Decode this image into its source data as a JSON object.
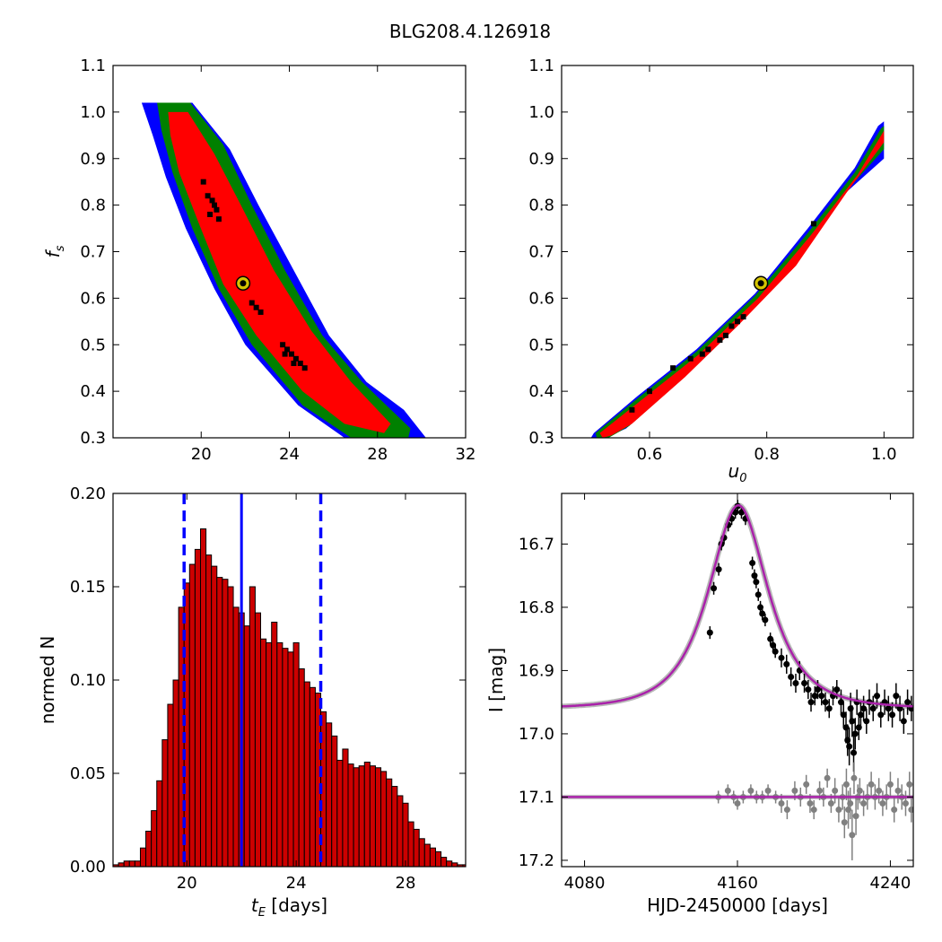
{
  "figure": {
    "title": "BLG208.4.126918"
  },
  "chart_data": [
    {
      "type": "heatmap",
      "panel": "top-left",
      "xlabel": "",
      "ylabel": "f_s",
      "xlim": [
        16,
        32
      ],
      "ylim": [
        0.3,
        1.1
      ],
      "xticks": [
        20,
        24,
        28,
        32
      ],
      "yticks": [
        0.3,
        0.4,
        0.5,
        0.6,
        0.7,
        0.8,
        0.9,
        1.0,
        1.1
      ],
      "regions": [
        {
          "name": "blue",
          "color": "#0000ff",
          "polygon": [
            [
              17.3,
              1.02
            ],
            [
              19.6,
              1.02
            ],
            [
              21.3,
              0.92
            ],
            [
              22.6,
              0.8
            ],
            [
              24.2,
              0.66
            ],
            [
              25.8,
              0.52
            ],
            [
              27.5,
              0.42
            ],
            [
              29.2,
              0.36
            ],
            [
              30.2,
              0.3
            ],
            [
              26.5,
              0.3
            ],
            [
              24.4,
              0.37
            ],
            [
              22.0,
              0.5
            ],
            [
              20.6,
              0.62
            ],
            [
              19.3,
              0.75
            ],
            [
              18.4,
              0.86
            ],
            [
              17.8,
              0.95
            ]
          ]
        },
        {
          "name": "green",
          "color": "#008000",
          "polygon": [
            [
              18.0,
              1.02
            ],
            [
              19.5,
              1.02
            ],
            [
              21.0,
              0.93
            ],
            [
              22.3,
              0.8
            ],
            [
              23.8,
              0.66
            ],
            [
              25.5,
              0.52
            ],
            [
              27.3,
              0.42
            ],
            [
              29.5,
              0.32
            ],
            [
              29.4,
              0.3
            ],
            [
              26.8,
              0.3
            ],
            [
              24.6,
              0.37
            ],
            [
              22.3,
              0.5
            ],
            [
              20.8,
              0.62
            ],
            [
              19.6,
              0.75
            ],
            [
              18.7,
              0.87
            ],
            [
              18.2,
              0.96
            ]
          ]
        },
        {
          "name": "red",
          "color": "#ff0000",
          "polygon": [
            [
              18.5,
              1.0
            ],
            [
              19.4,
              1.0
            ],
            [
              20.6,
              0.91
            ],
            [
              21.8,
              0.8
            ],
            [
              23.3,
              0.66
            ],
            [
              25.0,
              0.53
            ],
            [
              26.8,
              0.42
            ],
            [
              28.6,
              0.33
            ],
            [
              28.3,
              0.31
            ],
            [
              26.5,
              0.33
            ],
            [
              24.6,
              0.4
            ],
            [
              22.5,
              0.52
            ],
            [
              21.0,
              0.63
            ],
            [
              19.9,
              0.76
            ],
            [
              19.0,
              0.87
            ],
            [
              18.6,
              0.95
            ]
          ]
        }
      ],
      "samples": [
        [
          20.3,
          0.82
        ],
        [
          20.5,
          0.81
        ],
        [
          20.6,
          0.8
        ],
        [
          20.7,
          0.79
        ],
        [
          20.4,
          0.78
        ],
        [
          20.1,
          0.85
        ],
        [
          20.8,
          0.77
        ],
        [
          22.3,
          0.59
        ],
        [
          22.5,
          0.58
        ],
        [
          22.7,
          0.57
        ],
        [
          23.7,
          0.5
        ],
        [
          23.9,
          0.49
        ],
        [
          24.1,
          0.48
        ],
        [
          24.3,
          0.47
        ],
        [
          24.5,
          0.46
        ],
        [
          24.7,
          0.45
        ],
        [
          23.8,
          0.48
        ],
        [
          24.2,
          0.46
        ]
      ],
      "best_fit": [
        21.9,
        0.632
      ]
    },
    {
      "type": "heatmap",
      "panel": "top-right",
      "xlabel": "u_0",
      "ylabel": "",
      "xlim": [
        0.45,
        1.05
      ],
      "ylim": [
        0.3,
        1.1
      ],
      "xticks": [
        0.6,
        0.8,
        1.0
      ],
      "yticks": [
        0.3,
        0.4,
        0.5,
        0.6,
        0.7,
        0.8,
        0.9,
        1.0,
        1.1
      ],
      "regions": [
        {
          "name": "blue",
          "color": "#0000ff",
          "polygon": [
            [
              0.505,
              0.31
            ],
            [
              0.58,
              0.39
            ],
            [
              0.68,
              0.49
            ],
            [
              0.78,
              0.61
            ],
            [
              0.87,
              0.75
            ],
            [
              0.95,
              0.88
            ],
            [
              0.99,
              0.97
            ],
            [
              1.0,
              0.98
            ],
            [
              1.0,
              0.9
            ],
            [
              0.92,
              0.81
            ],
            [
              0.84,
              0.66
            ],
            [
              0.74,
              0.53
            ],
            [
              0.65,
              0.42
            ],
            [
              0.56,
              0.32
            ],
            [
              0.525,
              0.3
            ],
            [
              0.5,
              0.3
            ]
          ]
        },
        {
          "name": "green",
          "color": "#008000",
          "polygon": [
            [
              0.508,
              0.31
            ],
            [
              0.58,
              0.385
            ],
            [
              0.68,
              0.485
            ],
            [
              0.78,
              0.605
            ],
            [
              0.87,
              0.74
            ],
            [
              0.95,
              0.87
            ],
            [
              0.995,
              0.965
            ],
            [
              1.0,
              0.97
            ],
            [
              1.0,
              0.92
            ],
            [
              0.925,
              0.815
            ],
            [
              0.845,
              0.665
            ],
            [
              0.745,
              0.535
            ],
            [
              0.655,
              0.425
            ],
            [
              0.565,
              0.325
            ],
            [
              0.53,
              0.3
            ],
            [
              0.51,
              0.3
            ]
          ]
        },
        {
          "name": "red",
          "color": "#ff0000",
          "polygon": [
            [
              0.515,
              0.31
            ],
            [
              0.585,
              0.38
            ],
            [
              0.685,
              0.48
            ],
            [
              0.785,
              0.6
            ],
            [
              0.875,
              0.735
            ],
            [
              0.955,
              0.865
            ],
            [
              1.0,
              0.96
            ],
            [
              1.0,
              0.935
            ],
            [
              0.935,
              0.825
            ],
            [
              0.85,
              0.67
            ],
            [
              0.75,
              0.54
            ],
            [
              0.66,
              0.43
            ],
            [
              0.57,
              0.33
            ],
            [
              0.535,
              0.305
            ],
            [
              0.52,
              0.3
            ]
          ]
        }
      ],
      "samples": [
        [
          0.57,
          0.36
        ],
        [
          0.6,
          0.4
        ],
        [
          0.64,
          0.45
        ],
        [
          0.67,
          0.47
        ],
        [
          0.69,
          0.48
        ],
        [
          0.7,
          0.49
        ],
        [
          0.72,
          0.51
        ],
        [
          0.73,
          0.52
        ],
        [
          0.74,
          0.54
        ],
        [
          0.75,
          0.55
        ],
        [
          0.76,
          0.56
        ],
        [
          0.88,
          0.76
        ]
      ],
      "best_fit": [
        0.79,
        0.632
      ]
    },
    {
      "type": "bar",
      "panel": "bottom-left",
      "xlabel": "t_E [days]",
      "ylabel": "normed N",
      "xlim": [
        17.3,
        30.2
      ],
      "ylim": [
        0,
        0.2
      ],
      "xticks": [
        20,
        24,
        28
      ],
      "yticks": [
        0.0,
        0.05,
        0.1,
        0.15,
        0.2
      ],
      "bin_start": 17.3,
      "bin_width": 0.2,
      "values": [
        0.001,
        0.002,
        0.003,
        0.003,
        0.003,
        0.01,
        0.019,
        0.03,
        0.046,
        0.068,
        0.087,
        0.1,
        0.139,
        0.152,
        0.162,
        0.17,
        0.181,
        0.167,
        0.161,
        0.155,
        0.154,
        0.15,
        0.139,
        0.136,
        0.129,
        0.15,
        0.136,
        0.122,
        0.12,
        0.131,
        0.12,
        0.117,
        0.115,
        0.12,
        0.106,
        0.099,
        0.096,
        0.093,
        0.083,
        0.077,
        0.07,
        0.057,
        0.063,
        0.055,
        0.053,
        0.054,
        0.056,
        0.054,
        0.053,
        0.051,
        0.047,
        0.043,
        0.038,
        0.034,
        0.024,
        0.02,
        0.015,
        0.012,
        0.01,
        0.008,
        0.005,
        0.003,
        0.002,
        0.001,
        0.001
      ],
      "bar_color": "#cc0000",
      "median_line": 22.0,
      "interval_lines": [
        19.9,
        24.9
      ],
      "line_color": "#0000ff"
    },
    {
      "type": "scatter",
      "panel": "bottom-right",
      "xlabel": "HJD-2450000 [days]",
      "ylabel": "I [mag]",
      "xlim": [
        4068,
        4252
      ],
      "ylim": [
        17.21,
        16.62
      ],
      "y_inverted": true,
      "xticks": [
        4080,
        4160,
        4240
      ],
      "yticks": [
        16.7,
        16.8,
        16.9,
        17.0,
        17.1,
        17.2
      ],
      "model": {
        "t0": 4160.5,
        "u0": 0.79,
        "tE": 21.9,
        "fs": 0.632,
        "I_base": 16.96,
        "color": "#aa22aa",
        "baseline_residual": 17.1
      },
      "series": [
        {
          "color": "#000000",
          "x": [
            4145.6,
            4147.6,
            4150.2,
            4151.6,
            4153.0,
            4155.2,
            4157.0,
            4158.9,
            4160.1,
            4162.1,
            4164.2,
            4167.8,
            4168.9,
            4169.8,
            4170.9,
            4172.0,
            4173.0,
            4174.5,
            4177.2,
            4178.6,
            4179.8,
            4183.0,
            4185.7,
            4188.0,
            4190.5,
            4192.5,
            4195.0,
            4197.0,
            4198.5,
            4200.5,
            4202.0,
            4204.0,
            4206.0,
            4208.0,
            4210.0,
            4212.0,
            4214.2,
            4215.5,
            4216.8,
            4217.6,
            4218.5,
            4219.2,
            4220.0,
            4220.8,
            4221.6,
            4222.5,
            4223.5,
            4224.5,
            4226.0,
            4227.5,
            4229.0,
            4231.0,
            4233.0,
            4235.0,
            4237.0,
            4239.0,
            4241.0,
            4243.0,
            4245.0,
            4247.0,
            4249.0,
            4251.0
          ],
          "y": [
            16.84,
            16.77,
            16.74,
            16.7,
            16.69,
            16.67,
            16.66,
            16.65,
            16.64,
            16.65,
            16.66,
            16.73,
            16.75,
            16.76,
            16.78,
            16.8,
            16.81,
            16.82,
            16.85,
            16.86,
            16.87,
            16.88,
            16.89,
            16.91,
            16.92,
            16.9,
            16.92,
            16.93,
            16.95,
            16.94,
            16.93,
            16.94,
            16.95,
            16.96,
            16.94,
            16.93,
            16.95,
            16.97,
            16.99,
            17.01,
            17.02,
            16.96,
            16.98,
            17.03,
            17.0,
            16.95,
            16.99,
            16.97,
            16.96,
            16.98,
            16.95,
            16.96,
            16.94,
            16.97,
            16.95,
            16.96,
            16.97,
            16.94,
            16.96,
            16.98,
            16.95,
            16.96
          ],
          "err": [
            0.01,
            0.01,
            0.01,
            0.01,
            0.01,
            0.01,
            0.01,
            0.01,
            0.01,
            0.01,
            0.01,
            0.01,
            0.01,
            0.01,
            0.01,
            0.01,
            0.01,
            0.01,
            0.01,
            0.01,
            0.01,
            0.015,
            0.015,
            0.015,
            0.015,
            0.015,
            0.015,
            0.015,
            0.015,
            0.015,
            0.015,
            0.015,
            0.015,
            0.015,
            0.015,
            0.015,
            0.02,
            0.02,
            0.025,
            0.025,
            0.03,
            0.025,
            0.025,
            0.03,
            0.025,
            0.02,
            0.02,
            0.02,
            0.02,
            0.02,
            0.02,
            0.02,
            0.02,
            0.02,
            0.02,
            0.02,
            0.02,
            0.02,
            0.02,
            0.02,
            0.02,
            0.02
          ]
        },
        {
          "color": "#808080",
          "x": [
            4150,
            4155,
            4158,
            4160,
            4163,
            4167,
            4170,
            4173,
            4176,
            4180,
            4183,
            4186,
            4190,
            4193,
            4196,
            4198,
            4200,
            4203,
            4205,
            4207,
            4209,
            4211,
            4213,
            4215,
            4216,
            4217,
            4218,
            4219,
            4220,
            4221,
            4222,
            4223,
            4224,
            4226,
            4228,
            4230,
            4232,
            4234,
            4236,
            4238,
            4240,
            4242,
            4244,
            4246,
            4248,
            4250,
            4251
          ],
          "y": [
            17.1,
            17.09,
            17.1,
            17.11,
            17.1,
            17.09,
            17.1,
            17.1,
            17.09,
            17.1,
            17.11,
            17.12,
            17.09,
            17.1,
            17.08,
            17.11,
            17.12,
            17.09,
            17.1,
            17.07,
            17.11,
            17.09,
            17.12,
            17.1,
            17.14,
            17.08,
            17.12,
            17.11,
            17.16,
            17.07,
            17.13,
            17.1,
            17.09,
            17.11,
            17.1,
            17.08,
            17.1,
            17.09,
            17.11,
            17.1,
            17.08,
            17.12,
            17.09,
            17.1,
            17.11,
            17.08,
            17.12
          ],
          "err": [
            0.01,
            0.01,
            0.01,
            0.01,
            0.01,
            0.01,
            0.01,
            0.01,
            0.01,
            0.01,
            0.015,
            0.015,
            0.015,
            0.015,
            0.015,
            0.015,
            0.015,
            0.015,
            0.015,
            0.015,
            0.015,
            0.02,
            0.02,
            0.02,
            0.025,
            0.025,
            0.03,
            0.025,
            0.04,
            0.025,
            0.03,
            0.02,
            0.02,
            0.02,
            0.02,
            0.02,
            0.02,
            0.02,
            0.02,
            0.02,
            0.02,
            0.02,
            0.02,
            0.02,
            0.02,
            0.02,
            0.02
          ]
        }
      ]
    }
  ]
}
